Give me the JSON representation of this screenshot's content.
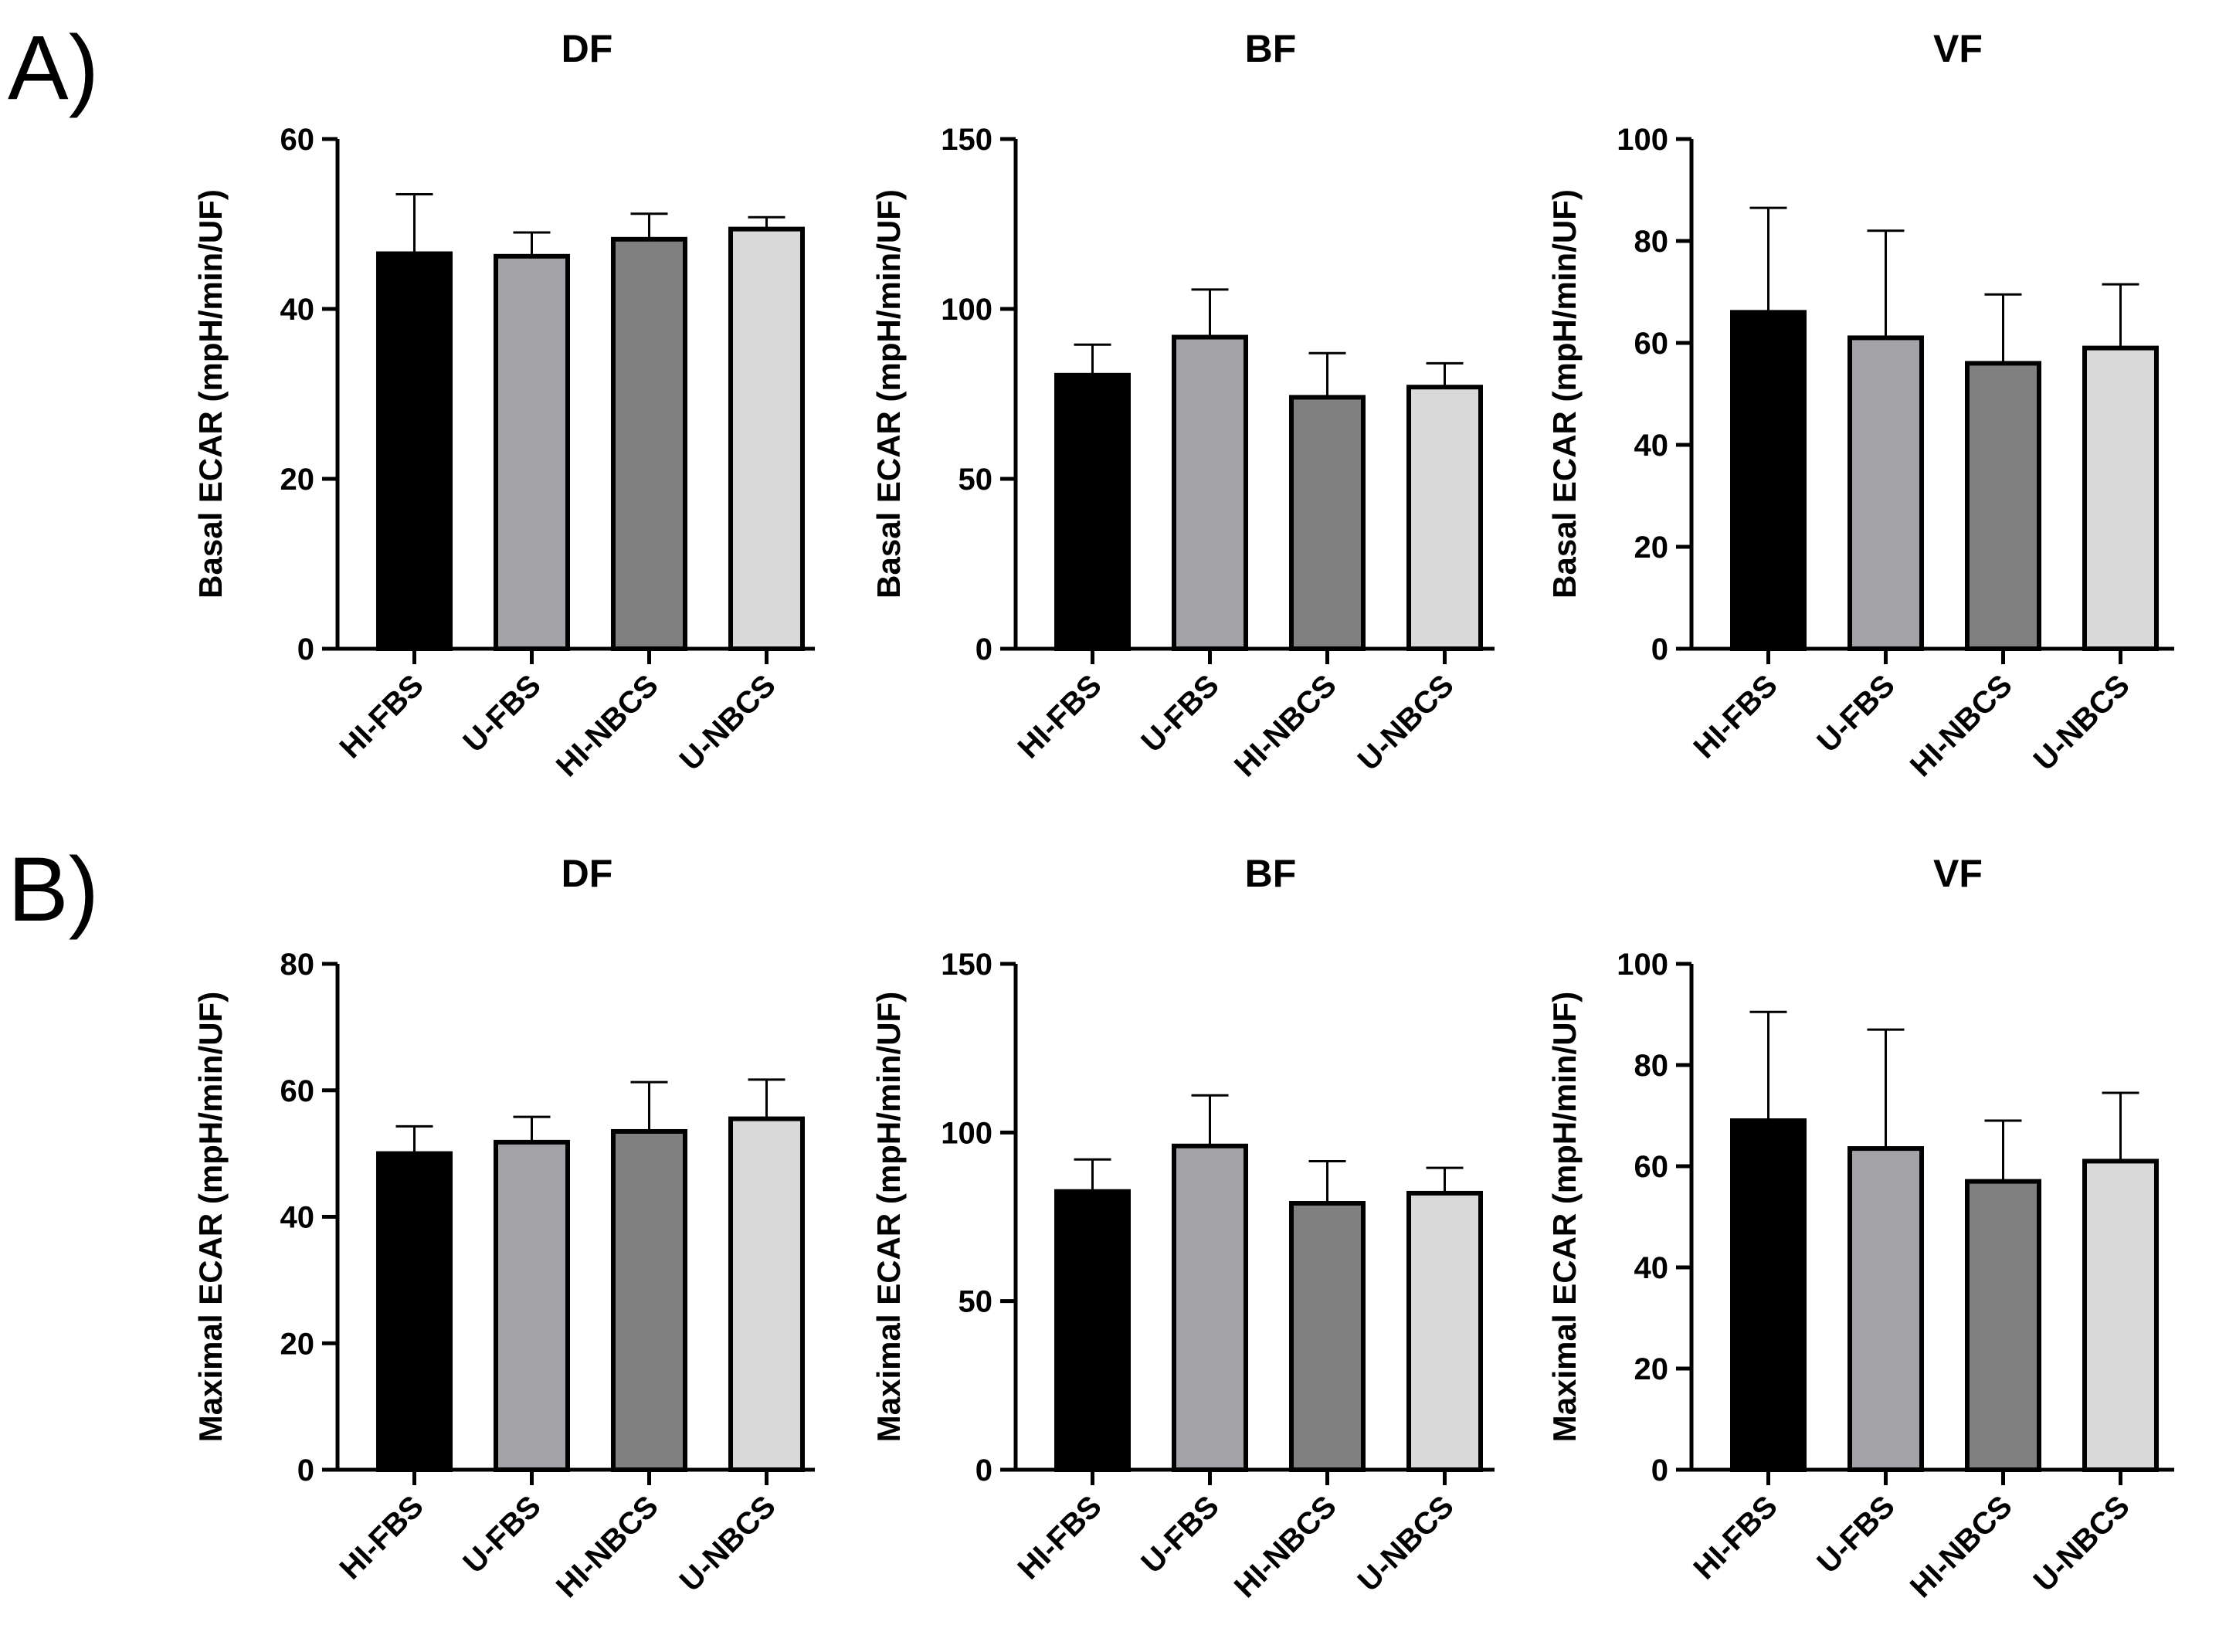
{
  "figure": {
    "panel_labels": [
      "A)",
      "B)"
    ]
  },
  "colors": {
    "HI-FBS": "#000000",
    "U-FBS": "#a3a2a7",
    "HI-NBCS": "#808080",
    "U-NBCS": "#d9d9d9"
  },
  "chart_data": [
    {
      "type": "bar",
      "panel": "A)",
      "title": "DF",
      "ylabel": "Basal ECAR (mpH/min/UF)",
      "xlabel": "",
      "categories": [
        "HI-FBS",
        "U-FBS",
        "HI-NBCS",
        "U-NBCS"
      ],
      "values": [
        46.5,
        46.2,
        48.2,
        49.4
      ],
      "errors": [
        7.0,
        2.8,
        3.0,
        1.4
      ],
      "ylim": [
        0,
        60
      ],
      "yticks": [
        0,
        20,
        40,
        60
      ]
    },
    {
      "type": "bar",
      "panel": "A)",
      "title": "BF",
      "ylabel": "Basal ECAR (mpH/min/UF)",
      "xlabel": "",
      "categories": [
        "HI-FBS",
        "U-FBS",
        "HI-NBCS",
        "U-NBCS"
      ],
      "values": [
        80.5,
        91.7,
        74.0,
        77.0
      ],
      "errors": [
        9.0,
        14.0,
        13.0,
        7.0
      ],
      "ylim": [
        0,
        150
      ],
      "yticks": [
        0,
        50,
        100,
        150
      ]
    },
    {
      "type": "bar",
      "panel": "A)",
      "title": "VF",
      "ylabel": "Basal ECAR (mpH/min/UF)",
      "xlabel": "",
      "categories": [
        "HI-FBS",
        "U-FBS",
        "HI-NBCS",
        "U-NBCS"
      ],
      "values": [
        66.0,
        61.0,
        56.0,
        59.0
      ],
      "errors": [
        20.5,
        21.0,
        13.5,
        12.5
      ],
      "ylim": [
        0,
        100
      ],
      "yticks": [
        0,
        20,
        40,
        60,
        80,
        100
      ]
    },
    {
      "type": "bar",
      "panel": "B)",
      "title": "DF",
      "ylabel": "Maximal ECAR (mpH/min/UF)",
      "xlabel": "",
      "categories": [
        "HI-FBS",
        "U-FBS",
        "HI-NBCS",
        "U-NBCS"
      ],
      "values": [
        50.0,
        51.8,
        53.5,
        55.5
      ],
      "errors": [
        4.3,
        4.0,
        7.8,
        6.2
      ],
      "ylim": [
        0,
        80
      ],
      "yticks": [
        0,
        20,
        40,
        60,
        80
      ]
    },
    {
      "type": "bar",
      "panel": "B)",
      "title": "BF",
      "ylabel": "Maximal ECAR (mpH/min/UF)",
      "xlabel": "",
      "categories": [
        "HI-FBS",
        "U-FBS",
        "HI-NBCS",
        "U-NBCS"
      ],
      "values": [
        82.5,
        96.0,
        79.0,
        82.0
      ],
      "errors": [
        9.5,
        15.0,
        12.5,
        7.5
      ],
      "ylim": [
        0,
        150
      ],
      "yticks": [
        0,
        50,
        100,
        150
      ]
    },
    {
      "type": "bar",
      "panel": "B)",
      "title": "VF",
      "ylabel": "Maximal ECAR (mpH/min/UF)",
      "xlabel": "",
      "categories": [
        "HI-FBS",
        "U-FBS",
        "HI-NBCS",
        "U-NBCS"
      ],
      "values": [
        69.0,
        63.5,
        57.0,
        61.0
      ],
      "errors": [
        21.5,
        23.5,
        12.0,
        13.5
      ],
      "ylim": [
        0,
        100
      ],
      "yticks": [
        0,
        20,
        40,
        60,
        80,
        100
      ]
    }
  ]
}
